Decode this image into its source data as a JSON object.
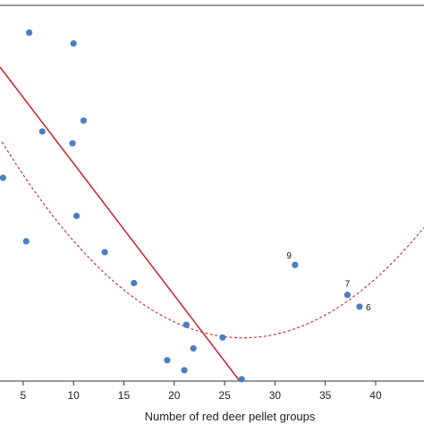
{
  "chart_data": {
    "type": "scatter",
    "title": "",
    "xlabel": "Number of red deer pellet groups",
    "ylabel": "",
    "xlim": [
      2.7,
      44.8
    ],
    "ylim": [
      0,
      41.4
    ],
    "x_ticks": [
      5,
      10,
      15,
      20,
      25,
      30,
      35,
      40
    ],
    "grid": false,
    "colors": {
      "points": "#4a7fc1",
      "linear_fit": "#c8232c",
      "quadratic_fit": "#c8232c",
      "axis": "#333333"
    },
    "points": [
      {
        "x": 3.0,
        "y": 22.4
      },
      {
        "x": 5.6,
        "y": 38.4
      },
      {
        "x": 10.0,
        "y": 37.2
      },
      {
        "x": 11.0,
        "y": 28.7
      },
      {
        "x": 6.9,
        "y": 27.5
      },
      {
        "x": 9.9,
        "y": 26.2
      },
      {
        "x": 10.3,
        "y": 18.2
      },
      {
        "x": 5.3,
        "y": 15.4
      },
      {
        "x": 13.1,
        "y": 14.2
      },
      {
        "x": 16.0,
        "y": 10.8
      },
      {
        "x": 21.2,
        "y": 6.2
      },
      {
        "x": 24.8,
        "y": 4.8
      },
      {
        "x": 21.9,
        "y": 3.6
      },
      {
        "x": 19.3,
        "y": 2.3
      },
      {
        "x": 21.0,
        "y": 1.2
      },
      {
        "x": 26.7,
        "y": 0.2
      },
      {
        "x": 32.0,
        "y": 12.8,
        "label": "9"
      },
      {
        "x": 37.2,
        "y": 9.5,
        "label": "7"
      },
      {
        "x": 38.4,
        "y": 8.2,
        "label": "6"
      }
    ],
    "linear_fit": {
      "x": [
        2.7,
        26.5
      ],
      "y": [
        34.6,
        0
      ]
    },
    "quadratic_fit": {
      "a": 0.0377,
      "b": -2.023,
      "c": 31.9,
      "x": [
        2.9,
        44.8
      ]
    }
  }
}
